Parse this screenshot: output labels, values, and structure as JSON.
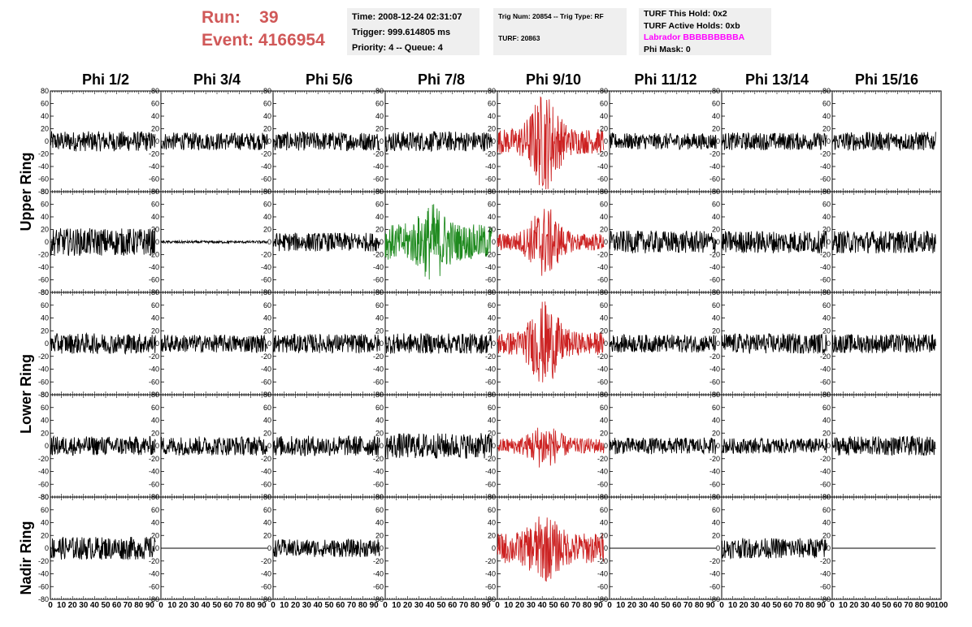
{
  "header": {
    "run_label": "Run:",
    "run_value": "39",
    "event_label": "Event:",
    "event_value": "4166954"
  },
  "info_box_1": {
    "line1": "Time: 2008-12-24 02:31:07",
    "line2": "Trigger: 999.614805 ms",
    "line3": "Priority: 4 -- Queue: 4"
  },
  "info_box_2": {
    "line1": "Trig Num: 20854 -- Trig Type: RF",
    "line2": "TURF: 20863"
  },
  "info_box_3": {
    "line1": "TURF This Hold: 0x2",
    "line2": "TURF Active Holds: 0xb",
    "line3": "Labrador BBBBBBBBBA",
    "line4": "Phi Mask: 0",
    "highlight_color": "#ff00ff"
  },
  "columns": [
    "Phi 1/2",
    "Phi 3/4",
    "Phi 5/6",
    "Phi 7/8",
    "Phi 9/10",
    "Phi 11/12",
    "Phi 13/14",
    "Phi 15/16"
  ],
  "rings": [
    "Upper Ring",
    "Lower Ring",
    "Nadir Ring"
  ],
  "colors": {
    "normal": "#000000",
    "triggered": "#cc2222",
    "highlighted": "#1f8a1f",
    "info_bg": "#efefef",
    "run_text": "#d05858"
  },
  "chart_data": {
    "type": "line",
    "description_axes": "waveform grid",
    "xlim": [
      0,
      100
    ],
    "ylim": [
      -80,
      80
    ],
    "x_ticks": [
      0,
      10,
      20,
      30,
      40,
      50,
      60,
      70,
      80,
      90,
      100
    ],
    "x_tick_labels_last_column": [
      "0",
      "10",
      "20",
      "30",
      "40",
      "50",
      "60",
      "70",
      "80",
      "90",
      "100"
    ],
    "y_ticks": [
      80,
      60,
      40,
      20,
      0,
      -20,
      -40,
      -60,
      -80
    ],
    "samples": 260,
    "x_span": [
      0,
      95
    ],
    "panels": [
      [
        {
          "amp": 16,
          "color": "normal",
          "burst": 0
        },
        {
          "amp": 14,
          "color": "normal",
          "burst": 0
        },
        {
          "amp": 15,
          "color": "normal",
          "burst": 0
        },
        {
          "amp": 16,
          "color": "normal",
          "burst": 0
        },
        {
          "amp": 20,
          "color": "triggered",
          "burst": 60
        },
        {
          "amp": 13,
          "color": "normal",
          "burst": 0
        },
        {
          "amp": 14,
          "color": "normal",
          "burst": 0
        },
        {
          "amp": 15,
          "color": "normal",
          "burst": 0
        }
      ],
      [
        {
          "amp": 22,
          "color": "normal",
          "burst": 0
        },
        {
          "amp": 2,
          "color": "normal",
          "burst": 0
        },
        {
          "amp": 15,
          "color": "normal",
          "burst": 0
        },
        {
          "amp": 28,
          "color": "highlighted",
          "burst": 35
        },
        {
          "amp": 14,
          "color": "triggered",
          "burst": 45
        },
        {
          "amp": 18,
          "color": "normal",
          "burst": 0
        },
        {
          "amp": 18,
          "color": "normal",
          "burst": 0
        },
        {
          "amp": 18,
          "color": "normal",
          "burst": 0
        }
      ],
      [
        {
          "amp": 16,
          "color": "normal",
          "burst": 0
        },
        {
          "amp": 14,
          "color": "normal",
          "burst": 0
        },
        {
          "amp": 15,
          "color": "normal",
          "burst": 0
        },
        {
          "amp": 16,
          "color": "normal",
          "burst": 0
        },
        {
          "amp": 18,
          "color": "triggered",
          "burst": 50
        },
        {
          "amp": 14,
          "color": "normal",
          "burst": 0
        },
        {
          "amp": 16,
          "color": "normal",
          "burst": 0
        },
        {
          "amp": 15,
          "color": "normal",
          "burst": 0
        }
      ],
      [
        {
          "amp": 15,
          "color": "normal",
          "burst": 0
        },
        {
          "amp": 15,
          "color": "normal",
          "burst": 0
        },
        {
          "amp": 16,
          "color": "normal",
          "burst": 0
        },
        {
          "amp": 20,
          "color": "normal",
          "burst": 0
        },
        {
          "amp": 12,
          "color": "triggered",
          "burst": 25
        },
        {
          "amp": 13,
          "color": "normal",
          "burst": 0
        },
        {
          "amp": 12,
          "color": "normal",
          "burst": 0
        },
        {
          "amp": 15,
          "color": "normal",
          "burst": 0
        }
      ],
      [
        {
          "amp": 18,
          "color": "normal",
          "burst": 0
        },
        {
          "amp": 0,
          "color": "normal",
          "burst": 0
        },
        {
          "amp": 14,
          "color": "normal",
          "burst": 0
        },
        null,
        {
          "amp": 24,
          "color": "triggered",
          "burst": 30
        },
        {
          "amp": 0,
          "color": "normal",
          "burst": 0
        },
        {
          "amp": 16,
          "color": "normal",
          "burst": 0
        },
        {
          "amp": 0,
          "color": "normal",
          "burst": 0
        }
      ]
    ]
  }
}
